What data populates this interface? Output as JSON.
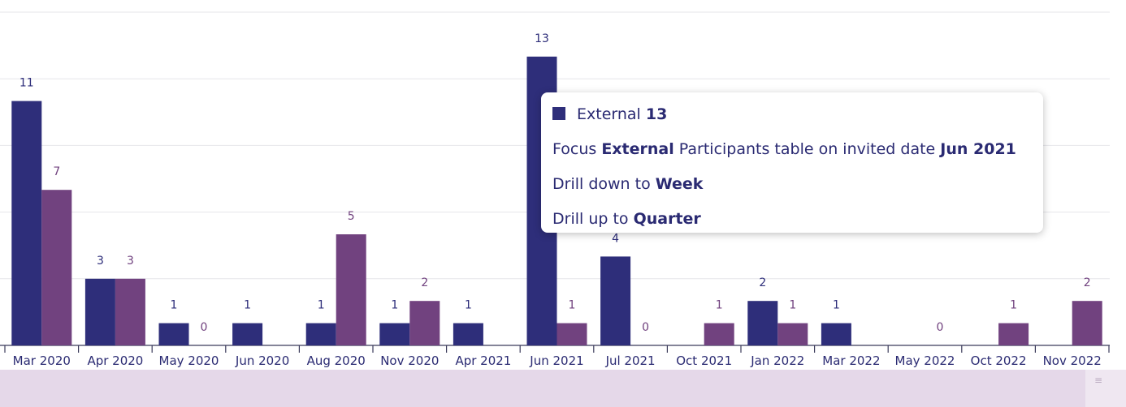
{
  "chart_data": {
    "type": "bar",
    "categories": [
      "Mar 2020",
      "Apr 2020",
      "May 2020",
      "Jun 2020",
      "Aug 2020",
      "Nov 2020",
      "Apr 2021",
      "Jun 2021",
      "Jul 2021",
      "Oct 2021",
      "Jan 2022",
      "Mar 2022",
      "May 2022",
      "Oct 2022",
      "Nov 2022"
    ],
    "series": [
      {
        "name": "External",
        "color": "#2e2e7a",
        "values": [
          11,
          3,
          1,
          1,
          1,
          1,
          1,
          13,
          4,
          null,
          2,
          1,
          null,
          null,
          null
        ],
        "labels": [
          "11",
          "3",
          "1",
          "1",
          "1",
          "1",
          "1",
          "13",
          "4",
          "",
          "2",
          "1",
          "",
          "",
          ""
        ]
      },
      {
        "color": "#71427f",
        "values": [
          7,
          3,
          0,
          null,
          5,
          2,
          null,
          1,
          0,
          1,
          1,
          null,
          0,
          1,
          2
        ],
        "labels": [
          "7",
          "3",
          "0",
          "",
          "5",
          "2",
          "",
          "1",
          "0",
          "1",
          "1",
          "",
          "0",
          "1",
          "2"
        ]
      }
    ],
    "ylim": [
      0,
      15
    ],
    "grid": true,
    "legend": "none"
  },
  "tooltip": {
    "series_name": "External",
    "series_value": "13",
    "focus": {
      "prefix": "Focus ",
      "bold1": "External",
      "middle": " Participants table on invited date ",
      "bold2": "Jun 2021"
    },
    "drill_down": {
      "prefix": "Drill down to ",
      "bold": "Week"
    },
    "drill_up": {
      "prefix": "Drill up to ",
      "bold": "Quarter"
    }
  },
  "scrollbar": {
    "handle_icon": "grip-icon"
  }
}
